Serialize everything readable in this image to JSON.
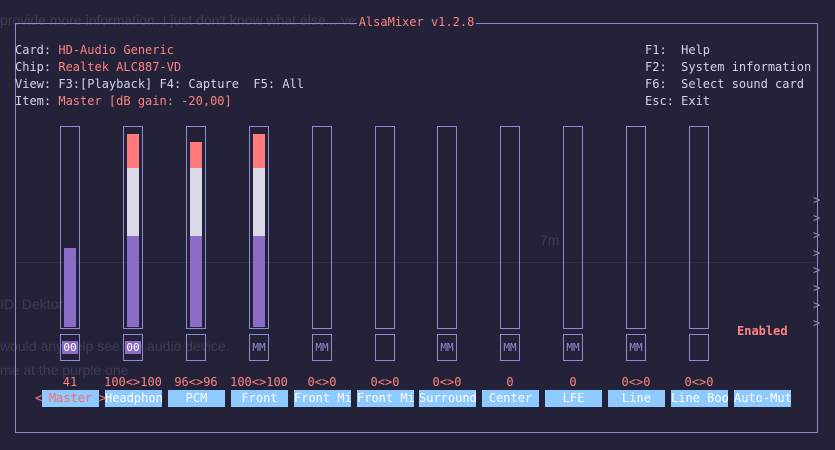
{
  "title": "AlsaMixer v1.2.8",
  "info": {
    "card_key": "Card:",
    "card_val": "HD-Audio Generic",
    "chip_key": "Chip:",
    "chip_val": "Realtek ALC887-VD",
    "view_key": "View:",
    "view_val": "F3:[Playback] F4: Capture  F5: All",
    "item_key": "Item:",
    "item_val": "Master [dB gain: -20,00]"
  },
  "help": {
    "f1": "F1:  Help",
    "f2": "F2:  System information",
    "f6": "F6:  Select sound card",
    "esc": "Esc: Exit"
  },
  "channels": [
    {
      "name": "Master",
      "value": "41",
      "mute": "00",
      "level": 0.41,
      "stereo_level": null
    },
    {
      "name": "Headphon",
      "value": "100<>100",
      "mute": "00",
      "level": 1.0
    },
    {
      "name": "PCM",
      "value": "96<>96",
      "mute": "",
      "level": 0.96
    },
    {
      "name": "Front",
      "value": "100<>100",
      "mute": "MM",
      "level": 1.0
    },
    {
      "name": "Front Mi",
      "value": "0<>0",
      "mute": "MM",
      "level": 0
    },
    {
      "name": "Front Mi",
      "value": "0<>0",
      "mute": "",
      "level": 0
    },
    {
      "name": "Surround",
      "value": "0<>0",
      "mute": "MM",
      "level": 0
    },
    {
      "name": "Center",
      "value": "0",
      "mute": "MM",
      "level": 0
    },
    {
      "name": "LFE",
      "value": "0",
      "mute": "MM",
      "level": 0
    },
    {
      "name": "Line",
      "value": "0<>0",
      "mute": "MM",
      "level": 0
    },
    {
      "name": "Line Boo",
      "value": "0<>0",
      "mute": "",
      "level": 0
    },
    {
      "name": "Auto-Mut",
      "value": "",
      "mute": "",
      "level": null
    }
  ],
  "selected_left_arrow": "<",
  "selected_right_arrow": ">",
  "auto_mute_state": "Enabled",
  "scroll_arrows": ">\n>\n>\n>\n>\n>\n>\n>",
  "background_text": {
    "g1": "provide more information. I just don't know what else... very annoying.",
    "g2": "7m",
    "g3": "ID: Dektor",
    "g4": "would any help see the audio device.",
    "g5": "me at the purple one"
  },
  "colors": {
    "frame": "#8d8dd6",
    "accent_red": "#ff8383",
    "fill_purple": "#8b6cc6",
    "fill_white": "#dcd9e8",
    "fill_red": "#ff7a7a",
    "label_bg": "#8ec9ff"
  }
}
